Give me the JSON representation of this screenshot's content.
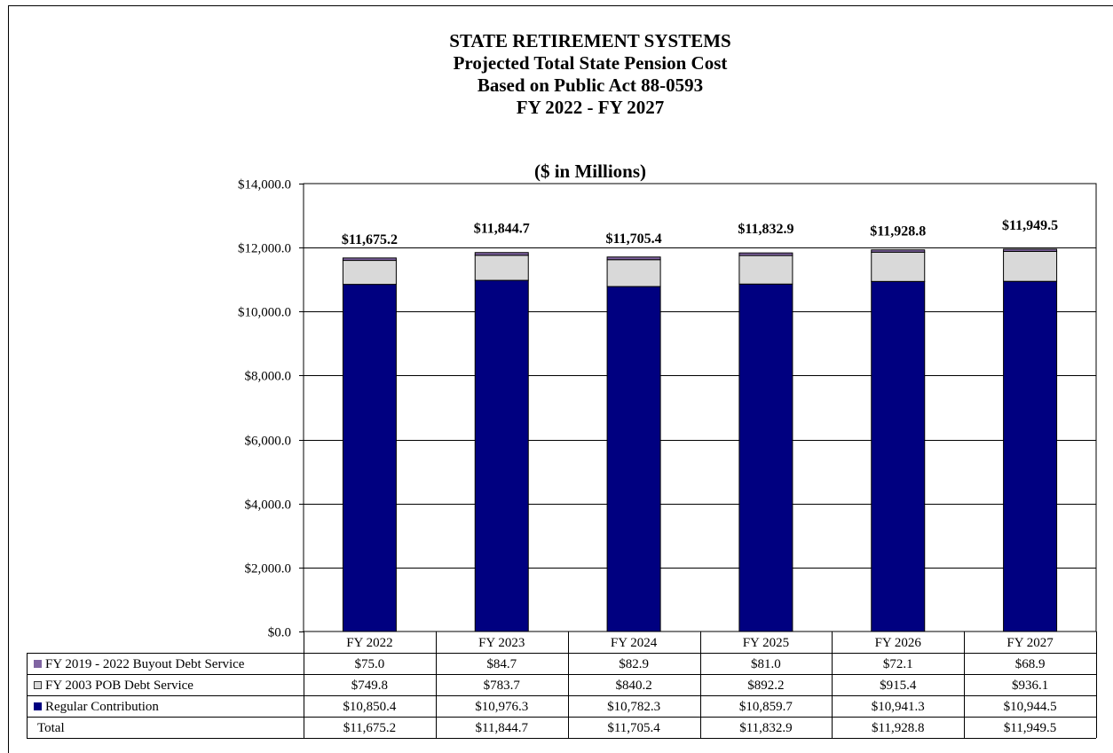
{
  "chart_data": {
    "type": "bar",
    "stacked": true,
    "title": "STATE RETIREMENT SYSTEMS",
    "subtitles": [
      "Projected Total State Pension Cost",
      "Based on Public Act 88-0593",
      "FY 2022 - FY 2027"
    ],
    "units_label": "($ in Millions)",
    "categories": [
      "FY 2022",
      "FY 2023",
      "FY 2024",
      "FY 2025",
      "FY 2026",
      "FY 2027"
    ],
    "series": [
      {
        "name": "FY 2019 - 2022 Buyout Debt Service",
        "color": "#8064A2",
        "values": [
          75.0,
          84.7,
          82.9,
          81.0,
          72.1,
          68.9
        ],
        "labels": [
          "$75.0",
          "$84.7",
          "$82.9",
          "$81.0",
          "$72.1",
          "$68.9"
        ]
      },
      {
        "name": "FY 2003 POB Debt Service",
        "color": "#D9D9D9",
        "values": [
          749.8,
          783.7,
          840.2,
          892.2,
          915.4,
          936.1
        ],
        "labels": [
          "$749.8",
          "$783.7",
          "$840.2",
          "$892.2",
          "$915.4",
          "$936.1"
        ]
      },
      {
        "name": "Regular Contribution",
        "color": "#000080",
        "values": [
          10850.4,
          10976.3,
          10782.3,
          10859.7,
          10941.3,
          10944.5
        ],
        "labels": [
          "$10,850.4",
          "$10,976.3",
          "$10,782.3",
          "$10,859.7",
          "$10,941.3",
          "$10,944.5"
        ]
      }
    ],
    "totals": {
      "name": "Total",
      "values": [
        11675.2,
        11844.7,
        11705.4,
        11832.9,
        11928.8,
        11949.5
      ],
      "labels": [
        "$11,675.2",
        "$11,844.7",
        "$11,705.4",
        "$11,832.9",
        "$11,928.8",
        "$11,949.5"
      ]
    },
    "ylim": [
      0,
      14000
    ],
    "yticks": [
      0,
      2000,
      4000,
      6000,
      8000,
      10000,
      12000,
      14000
    ],
    "ytick_labels": [
      "$0.0",
      "$2,000.0",
      "$4,000.0",
      "$6,000.0",
      "$8,000.0",
      "$10,000.0",
      "$12,000.0",
      "$14,000.0"
    ],
    "grid": true,
    "legend": "data-table"
  }
}
